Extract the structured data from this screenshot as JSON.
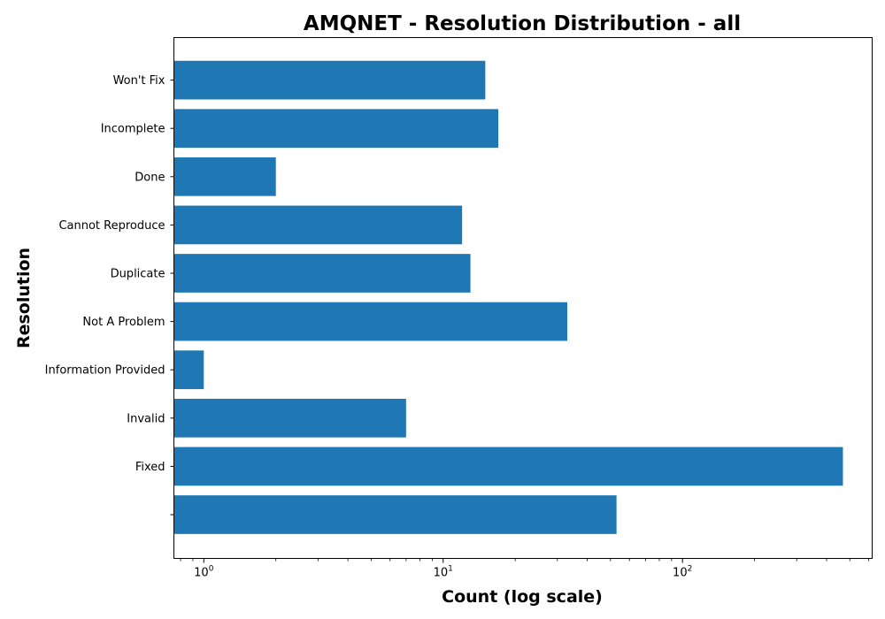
{
  "chart_data": {
    "type": "bar",
    "orientation": "horizontal",
    "title": "AMQNET - Resolution Distribution - all",
    "xlabel": "Count (log scale)",
    "ylabel": "Resolution",
    "x_scale": "log",
    "xlim": [
      0.75,
      620
    ],
    "x_ticks": [
      {
        "value": 1,
        "base": "10",
        "exp": "0"
      },
      {
        "value": 10,
        "base": "10",
        "exp": "1"
      },
      {
        "value": 100,
        "base": "10",
        "exp": "2"
      }
    ],
    "categories": [
      "",
      "Fixed",
      "Invalid",
      "Information Provided",
      "Not A Problem",
      "Duplicate",
      "Cannot Reproduce",
      "Done",
      "Incomplete",
      "Won't Fix"
    ],
    "values": [
      53,
      468,
      7,
      1,
      33,
      13,
      12,
      2,
      17,
      15
    ],
    "bar_color": "#1f77b4",
    "grid": false,
    "legend": "none"
  }
}
